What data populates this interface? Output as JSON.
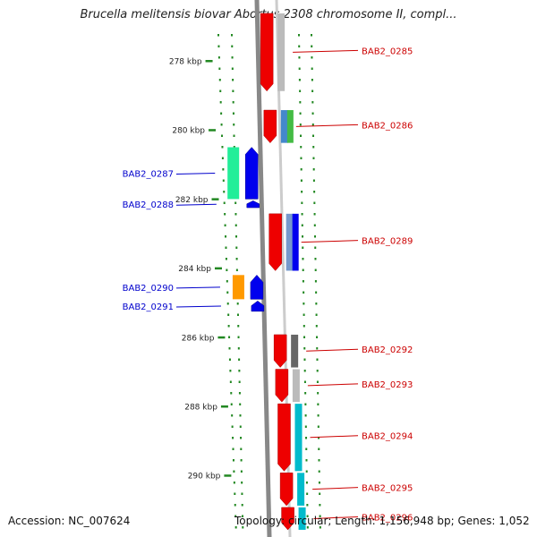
{
  "title": "Brucella melitensis biovar Abortus 2308 chromosome II, compl...",
  "footer": {
    "accession": "Accession: NC_007624",
    "topology": "Topology: circular; Length: 1,156,948 bp; Genes: 1,052"
  },
  "colors": {
    "forward_label": "#cc0000",
    "reverse_label": "#0000cc",
    "tick_dots": "#228822",
    "backbone": "#888888"
  },
  "scale": {
    "ticks": [
      {
        "label": "278 kbp",
        "kbp": 278
      },
      {
        "label": "280 kbp",
        "kbp": 280
      },
      {
        "label": "282 kbp",
        "kbp": 282
      },
      {
        "label": "284 kbp",
        "kbp": 284
      },
      {
        "label": "286 kbp",
        "kbp": 286
      },
      {
        "label": "288 kbp",
        "kbp": 288
      },
      {
        "label": "290 kbp",
        "kbp": 290
      }
    ]
  },
  "genes_forward": [
    {
      "label": "BAB2_0285",
      "kbp_start": 276.6,
      "kbp_end": 278.9,
      "colors": [
        "#ee0000",
        "#bbbbbb"
      ]
    },
    {
      "label": "BAB2_0286",
      "kbp_start": 279.4,
      "kbp_end": 280.4,
      "colors": [
        "#ee0000",
        "#4488cc",
        "#44bb44"
      ]
    },
    {
      "label": "BAB2_0289",
      "kbp_start": 282.4,
      "kbp_end": 284.1,
      "colors": [
        "#ee0000",
        "#7799cc",
        "#0000ee"
      ]
    },
    {
      "label": "BAB2_0292",
      "kbp_start": 285.9,
      "kbp_end": 286.9,
      "colors": [
        "#ee0000",
        "#666666"
      ]
    },
    {
      "label": "BAB2_0293",
      "kbp_start": 286.9,
      "kbp_end": 287.9,
      "colors": [
        "#ee0000",
        "#bbbbbb"
      ]
    },
    {
      "label": "BAB2_0294",
      "kbp_start": 287.9,
      "kbp_end": 289.9,
      "colors": [
        "#ee0000",
        "#00bbcc"
      ]
    },
    {
      "label": "BAB2_0295",
      "kbp_start": 289.9,
      "kbp_end": 290.9,
      "colors": [
        "#ee0000",
        "#00bbcc"
      ]
    },
    {
      "label": "BAB2_0296",
      "kbp_start": 290.9,
      "kbp_end": 291.6,
      "colors": [
        "#ee0000",
        "#00bbcc"
      ]
    }
  ],
  "genes_reverse": [
    {
      "label": "BAB2_0287",
      "kbp_start": 280.5,
      "kbp_end": 282.0,
      "colors": [
        "#22ee99",
        "#0000ee"
      ]
    },
    {
      "label": "BAB2_0288",
      "kbp_start": 282.05,
      "kbp_end": 282.25,
      "colors": [
        "#0000ee"
      ]
    },
    {
      "label": "BAB2_0290",
      "kbp_start": 284.2,
      "kbp_end": 284.9,
      "colors": [
        "#ff9900",
        "#0000ee"
      ]
    },
    {
      "label": "BAB2_0291",
      "kbp_start": 284.95,
      "kbp_end": 285.25,
      "colors": [
        "#0000ee"
      ]
    }
  ]
}
